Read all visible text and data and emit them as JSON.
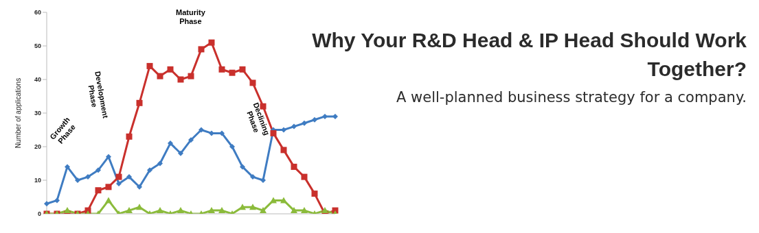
{
  "chart_data": {
    "type": "line",
    "title": "Why Your R&D Head & IP Head Should Work Together?",
    "subtitle": "A well-planned business strategy for a company.",
    "ylabel": "Number of applications",
    "categories": [
      null,
      null,
      null,
      null,
      null,
      null,
      null,
      null,
      null,
      null,
      null,
      null,
      null,
      null,
      null,
      null,
      null,
      null,
      null,
      null,
      null,
      null,
      null,
      null,
      null,
      null,
      null,
      null,
      null
    ],
    "series": [
      {
        "color": "#3f7cc2",
        "marker": "diamond",
        "values": [
          3,
          4,
          14,
          10,
          11,
          13,
          17,
          9,
          11,
          8,
          13,
          15,
          21,
          18,
          22,
          25,
          24,
          24,
          20,
          14,
          11,
          10,
          25,
          25,
          26,
          27,
          28,
          29,
          29
        ]
      },
      {
        "color": "#c9302c",
        "marker": "square",
        "values": [
          0,
          0,
          0,
          0,
          1,
          7,
          8,
          11,
          23,
          33,
          44,
          41,
          43,
          40,
          41,
          49,
          51,
          43,
          42,
          43,
          39,
          32,
          24,
          19,
          14,
          11,
          6,
          0,
          1
        ]
      },
      {
        "color": "#8bbb3b",
        "marker": "triangle",
        "values": [
          0,
          0,
          1,
          0,
          0,
          0,
          4,
          0,
          1,
          2,
          0,
          1,
          0,
          1,
          0,
          0,
          1,
          1,
          0,
          2,
          2,
          1,
          4,
          4,
          1,
          1,
          0,
          1,
          0
        ]
      }
    ],
    "ylim": [
      0,
      60
    ],
    "yticks": [
      0,
      10,
      20,
      30,
      40,
      50,
      60
    ],
    "tick_labels": "y",
    "grid": false,
    "annotations": [
      "Growth Phase",
      "Development Phase",
      "Maturity Phase",
      "Declining Phase"
    ]
  }
}
